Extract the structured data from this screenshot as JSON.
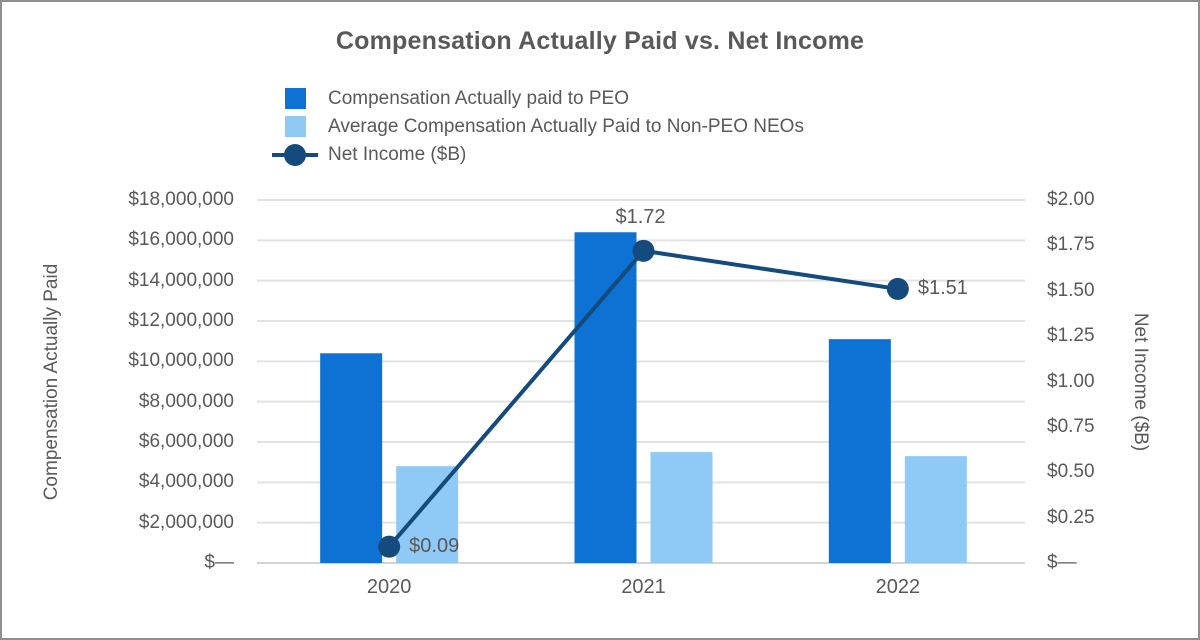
{
  "title": "Compensation Actually Paid vs. Net Income",
  "legend": [
    {
      "label": "Compensation Actually paid to PEO",
      "color": "#0d72d4",
      "type": "square"
    },
    {
      "label": "Average Compensation Actually Paid to Non-PEO NEOs",
      "color": "#8fc9f5",
      "type": "square"
    },
    {
      "label": "Net Income ($B)",
      "color": "#144a7c",
      "type": "line-marker"
    }
  ],
  "chart_data": {
    "type": "bar",
    "subtype": "clustered-bar-with-line, dual axis",
    "title": "Compensation Actually Paid vs. Net Income",
    "categories": [
      "2020",
      "2021",
      "2022"
    ],
    "series": [
      {
        "name": "Compensation Actually paid to PEO",
        "type": "bar",
        "axis": "left",
        "color": "#0d72d4",
        "values": [
          10400000,
          16400000,
          11100000
        ]
      },
      {
        "name": "Average Compensation Actually Paid to Non-PEO NEOs",
        "type": "bar",
        "axis": "left",
        "color": "#8fc9f5",
        "values": [
          4800000,
          5500000,
          5300000
        ]
      },
      {
        "name": "Net Income ($B)",
        "type": "line",
        "axis": "right",
        "color": "#144a7c",
        "values": [
          0.09,
          1.72,
          1.51
        ],
        "point_labels": [
          "$0.09",
          "$1.72",
          "$1.51"
        ],
        "label_placement": [
          "right",
          "above",
          "right"
        ]
      }
    ],
    "left_axis": {
      "title": "Compensation Actually Paid",
      "min": 0,
      "max": 18000000,
      "tick_labels": [
        "$18,000,000",
        "$16,000,000",
        "$14,000,000",
        "$12,000,000",
        "$10,000,000",
        "$8,000,000",
        "$6,000,000",
        "$4,000,000",
        "$2,000,000",
        "$—"
      ]
    },
    "right_axis": {
      "title": "Net Income ($B)",
      "min": 0,
      "max": 2.0,
      "tick_labels": [
        "$2.00",
        "$1.75",
        "$1.50",
        "$1.25",
        "$1.00",
        "$0.75",
        "$0.50",
        "$0.25",
        "$—"
      ]
    },
    "grid": "horizontal gridlines every $2,000,000",
    "legend_position": "top-left",
    "colors": {
      "text": "#595959",
      "gridline": "#e2e2e2",
      "axis_line": "#d4d4d4"
    }
  }
}
